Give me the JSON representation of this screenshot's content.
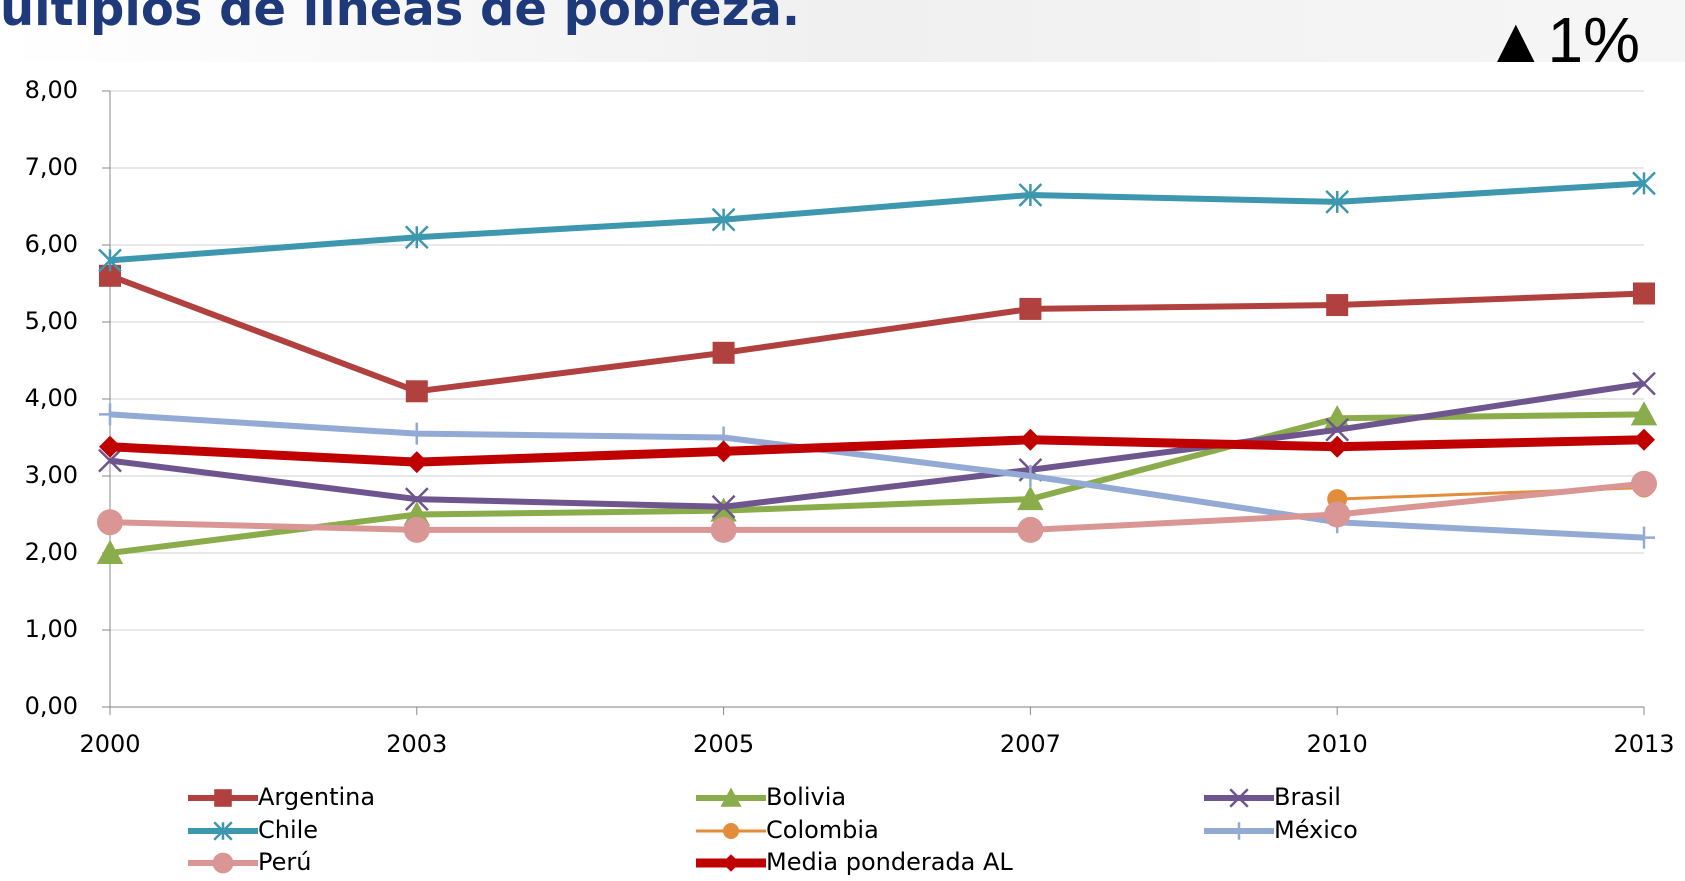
{
  "title": "últiplos de líneas de pobreza.",
  "badge": "▲1%",
  "chart_data": {
    "type": "line",
    "categories": [
      "2000",
      "2003",
      "2005",
      "2007",
      "2010",
      "2013"
    ],
    "ylim": [
      0,
      8
    ],
    "yticks": [
      {
        "value": 0,
        "label": "0,00"
      },
      {
        "value": 1,
        "label": "1,00"
      },
      {
        "value": 2,
        "label": "2,00"
      },
      {
        "value": 3,
        "label": "3,00"
      },
      {
        "value": 4,
        "label": "4,00"
      },
      {
        "value": 5,
        "label": "5,00"
      },
      {
        "value": 6,
        "label": "6,00"
      },
      {
        "value": 7,
        "label": "7,00"
      },
      {
        "value": 8,
        "label": "8,00"
      }
    ],
    "grid": true,
    "legend": "bottom",
    "series": [
      {
        "name": "Argentina",
        "color": "#b0413e",
        "marker": "square",
        "width": 6,
        "values": [
          5.6,
          4.1,
          4.6,
          5.17,
          5.22,
          5.37
        ]
      },
      {
        "name": "Bolivia",
        "color": "#8aac4b",
        "marker": "triangle",
        "width": 6,
        "values": [
          2.0,
          2.5,
          2.55,
          2.7,
          3.75,
          3.8
        ]
      },
      {
        "name": "Brasil",
        "color": "#6f558e",
        "marker": "cross",
        "width": 6,
        "values": [
          3.2,
          2.7,
          2.6,
          3.08,
          3.6,
          4.2
        ]
      },
      {
        "name": "Chile",
        "color": "#3d97ae",
        "marker": "asterisk",
        "width": 6,
        "values": [
          5.8,
          6.1,
          6.33,
          6.65,
          6.56,
          6.8
        ]
      },
      {
        "name": "Colombia",
        "color": "#e38c3a",
        "marker": "circle",
        "width": 3,
        "values": [
          null,
          null,
          null,
          null,
          2.7,
          2.85
        ]
      },
      {
        "name": "México",
        "color": "#93aad4",
        "marker": "plus",
        "width": 6,
        "values": [
          3.8,
          3.55,
          3.5,
          3.0,
          2.4,
          2.2
        ]
      },
      {
        "name": "Perú",
        "color": "#d99694",
        "marker": "bigcircle",
        "width": 6,
        "values": [
          2.4,
          2.3,
          2.3,
          2.3,
          2.5,
          2.9
        ]
      },
      {
        "name": "Media ponderada AL",
        "color": "#c00000",
        "marker": "diamond",
        "width": 9,
        "values": [
          3.38,
          3.18,
          3.32,
          3.47,
          3.38,
          3.47
        ]
      }
    ]
  }
}
